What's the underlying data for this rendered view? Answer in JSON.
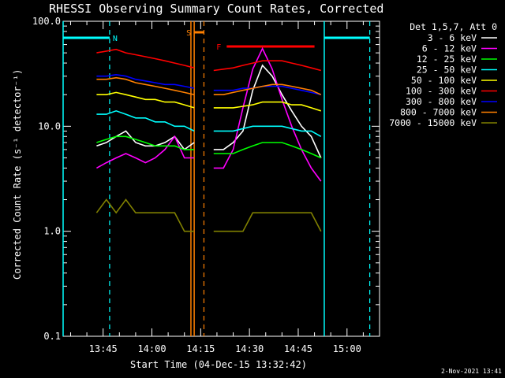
{
  "chart_data": {
    "type": "line",
    "title": "RHESSI Observing Summary Count Rates, Corrected",
    "xlabel": "Start Time (04-Dec-15 13:32:42)",
    "ylabel": "Corrected Count Rate (s⁻¹ detector⁻¹)",
    "y_scale": "log",
    "ylim": [
      0.1,
      100
    ],
    "xlim": [
      "13:32:42",
      "15:10:00"
    ],
    "x_ticks": [
      "13:45",
      "14:00",
      "14:15",
      "14:30",
      "14:45",
      "15:00"
    ],
    "y_ticks": [
      "0.1",
      "1.0",
      "10.0",
      "100.0"
    ],
    "legend_header": "Det 1,5,7, Att 0",
    "legend_position": "right",
    "timestamp": "2-Nov-2021 13:41",
    "x": [
      "13:43",
      "13:46",
      "13:49",
      "13:52",
      "13:55",
      "13:58",
      "14:01",
      "14:04",
      "14:07",
      "14:10",
      "14:13",
      "14:19",
      "14:22",
      "14:25",
      "14:28",
      "14:31",
      "14:34",
      "14:37",
      "14:40",
      "14:43",
      "14:46",
      "14:49",
      "14:52"
    ],
    "series": [
      {
        "name": "3 - 6 keV",
        "color": "#ffffff",
        "values": [
          6.5,
          7,
          8,
          9,
          7,
          6.5,
          6.5,
          7,
          8,
          6,
          7,
          6,
          6,
          7,
          9,
          22,
          38,
          30,
          20,
          14,
          10,
          8,
          5
        ]
      },
      {
        "name": "6 - 12 keV",
        "color": "#ff00ff",
        "values": [
          4,
          4.5,
          5,
          5.5,
          5,
          4.5,
          5,
          6,
          8,
          5,
          5,
          4,
          4,
          6,
          15,
          35,
          55,
          35,
          18,
          10,
          6,
          4,
          3
        ]
      },
      {
        "name": "12 - 25 keV",
        "color": "#00ff00",
        "values": [
          7,
          7.5,
          8,
          8,
          7.5,
          7,
          6.5,
          6.5,
          6.5,
          6,
          6,
          5.5,
          5.5,
          5.5,
          6,
          6.5,
          7,
          7,
          7,
          6.5,
          6,
          5.5,
          5
        ]
      },
      {
        "name": "25 - 50 keV",
        "color": "#00ffff",
        "values": [
          13,
          13,
          14,
          13,
          12,
          12,
          11,
          11,
          10,
          10,
          9,
          9,
          9,
          9,
          9.5,
          10,
          10,
          10,
          10,
          9.5,
          9,
          9,
          8
        ]
      },
      {
        "name": "50 - 100 keV",
        "color": "#ffff00",
        "values": [
          20,
          20,
          21,
          20,
          19,
          18,
          18,
          17,
          17,
          16,
          15,
          15,
          15,
          15,
          15.5,
          16,
          17,
          17,
          17,
          16,
          16,
          15,
          14
        ]
      },
      {
        "name": "100 - 300 keV",
        "color": "#ff0000",
        "values": [
          50,
          52,
          54,
          50,
          48,
          46,
          44,
          42,
          40,
          38,
          36,
          34,
          35,
          36,
          38,
          40,
          42,
          42,
          42,
          40,
          38,
          36,
          34
        ]
      },
      {
        "name": "300 - 800 keV",
        "color": "#0000ff",
        "values": [
          30,
          30,
          31,
          30,
          28,
          27,
          26,
          25,
          25,
          24,
          23,
          22,
          22,
          22,
          23,
          23,
          24,
          24,
          24,
          23,
          22,
          21,
          20
        ]
      },
      {
        "name": "800 - 7000 keV",
        "color": "#ff8000",
        "values": [
          28,
          28,
          29,
          28,
          26,
          25,
          24,
          23,
          22,
          21,
          20,
          20,
          20,
          21,
          22,
          23,
          24,
          25,
          25,
          24,
          23,
          22,
          20
        ]
      },
      {
        "name": "7000 - 15000 keV",
        "color": "#808000",
        "values": [
          1.5,
          2,
          1.5,
          2,
          1.5,
          1.5,
          1.5,
          1.5,
          1.5,
          1,
          1,
          1,
          1,
          1,
          1,
          1.5,
          1.5,
          1.5,
          1.5,
          1.5,
          1.5,
          1.5,
          1
        ]
      }
    ],
    "annotations": [
      {
        "label": "N",
        "color": "#00ffff",
        "bar_from": "13:32:42",
        "bar_to": "13:47",
        "line_x": "13:47"
      },
      {
        "label": "S",
        "color": "#ff8000",
        "bar_from": "14:13",
        "bar_to": "14:16",
        "line_x": "14:16"
      },
      {
        "label": "F",
        "color": "#ff0000",
        "bar_from": "14:23",
        "bar_to": "14:50"
      },
      {
        "label": "",
        "color": "#00ffff",
        "bar_from": "14:53",
        "bar_to": "15:07",
        "line_x": "15:07"
      }
    ],
    "vlines": [
      {
        "x": "13:32:42",
        "color": "#00ffff",
        "style": "solid"
      },
      {
        "x": "14:12",
        "color": "#ff8000",
        "style": "solid"
      },
      {
        "x": "14:13",
        "color": "#ff8000",
        "style": "solid"
      },
      {
        "x": "14:53",
        "color": "#00ffff",
        "style": "solid"
      }
    ],
    "data_gaps": [
      [
        "13:41",
        "13:42"
      ],
      [
        "14:11",
        "14:19"
      ],
      [
        "14:52",
        "15:10"
      ]
    ]
  }
}
